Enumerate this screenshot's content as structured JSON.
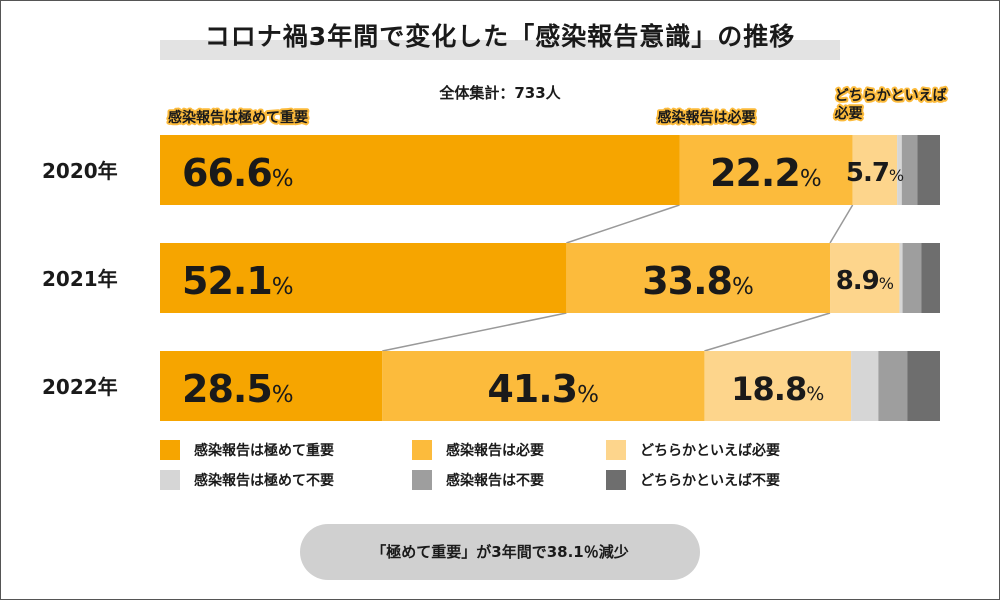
{
  "title": "コロナ禍3年間で変化した「感染報告意識」の推移",
  "subtitle": "全体集計：733人",
  "callout": "「極めて重要」が3年間で38.1％減少",
  "colors": [
    "#f6a500",
    "#fcbb3c",
    "#fdd58c",
    "#d6d6d6",
    "#9e9e9e",
    "#6e6e6e"
  ],
  "chart_data": {
    "type": "bar",
    "orientation": "horizontal",
    "stacked": true,
    "normalized": true,
    "categories": [
      "2020年",
      "2021年",
      "2022年"
    ],
    "series": [
      {
        "name": "感染報告は極めて重要",
        "values": [
          66.6,
          52.1,
          28.5
        ]
      },
      {
        "name": "感染報告は必要",
        "values": [
          22.2,
          33.8,
          41.3
        ]
      },
      {
        "name": "どちらかといえば必要",
        "values": [
          5.7,
          8.9,
          18.8
        ]
      },
      {
        "name": "感染報告は極めて不要",
        "values": [
          0.6,
          0.4,
          3.5
        ]
      },
      {
        "name": "感染報告は不要",
        "values": [
          2.0,
          2.4,
          3.7
        ]
      },
      {
        "name": "どちらかといえば不要",
        "values": [
          2.9,
          2.4,
          4.2
        ]
      }
    ],
    "value_labels_shown_for_series": [
      0,
      1,
      2
    ],
    "value_unit": "%",
    "top_annotations": [
      "感染報告は極めて重要",
      "感染報告は必要",
      "どちらかといえば\n必要"
    ],
    "legend_position": "bottom",
    "grid": false
  }
}
